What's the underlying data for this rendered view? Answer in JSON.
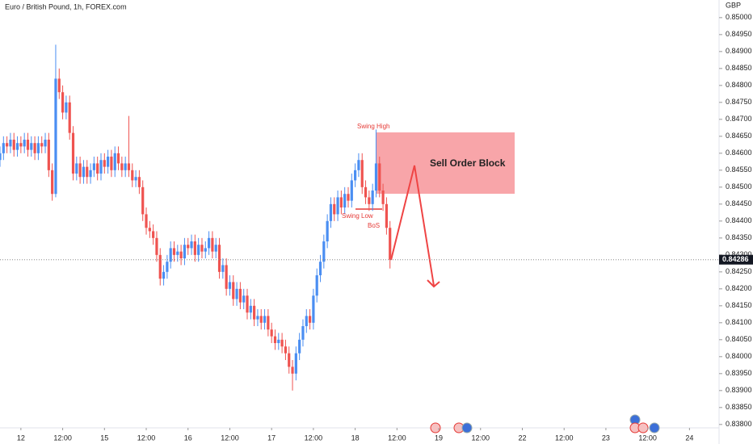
{
  "chart_data": {
    "type": "candlestick",
    "title": "Euro / British Pound, 1h, FOREX.com",
    "y_axis_label": "GBP",
    "annotations": {
      "swing_high": "Swing High",
      "swing_low": "Swing Low",
      "bos": "BoS",
      "order_block": "Sell Order Block"
    },
    "up_color": "#4a8ef2",
    "down_color": "#ef5350",
    "x": [
      -6,
      -5,
      -4,
      -3,
      -2,
      -1,
      0,
      1,
      2,
      3,
      4,
      5,
      6,
      7,
      8,
      9,
      10,
      11,
      12,
      13,
      14,
      15,
      16,
      17,
      18,
      19,
      20,
      21,
      22,
      23,
      24,
      25,
      26,
      27,
      28,
      29,
      30,
      31,
      32,
      33,
      34,
      35,
      36,
      37,
      38,
      39,
      40,
      41,
      42,
      43,
      44,
      45,
      46,
      47,
      48,
      49,
      50,
      51,
      52,
      53,
      54,
      55,
      56,
      57,
      58,
      59,
      60,
      61,
      62,
      63,
      64,
      65,
      66,
      67,
      68,
      69,
      70,
      71,
      72,
      73,
      74,
      75,
      76,
      77,
      78,
      79,
      80,
      81,
      82,
      83,
      84,
      85,
      86,
      87,
      88,
      89,
      90,
      91,
      92,
      93,
      94,
      95,
      96,
      97,
      98,
      99,
      100,
      101,
      102,
      103,
      104,
      105,
      106
    ],
    "open": [
      0.8458,
      0.846,
      0.8463,
      0.8462,
      0.8464,
      0.8461,
      0.8463,
      0.8462,
      0.8464,
      0.8461,
      0.8463,
      0.846,
      0.8463,
      0.8462,
      0.8464,
      0.8455,
      0.8448,
      0.8482,
      0.8478,
      0.8472,
      0.8475,
      0.8466,
      0.8454,
      0.8457,
      0.8453,
      0.8456,
      0.8453,
      0.8455,
      0.8457,
      0.8454,
      0.8458,
      0.8456,
      0.8459,
      0.8455,
      0.846,
      0.8457,
      0.8455,
      0.8457,
      0.8455,
      0.8452,
      0.8453,
      0.845,
      0.8442,
      0.8438,
      0.8437,
      0.8435,
      0.843,
      0.8423,
      0.8425,
      0.8428,
      0.8432,
      0.843,
      0.8431,
      0.8429,
      0.8433,
      0.8432,
      0.8434,
      0.843,
      0.8433,
      0.8431,
      0.8432,
      0.8435,
      0.8431,
      0.8433,
      0.8425,
      0.8427,
      0.842,
      0.8422,
      0.8417,
      0.842,
      0.8416,
      0.8418,
      0.8413,
      0.8415,
      0.8411,
      0.8412,
      0.841,
      0.8412,
      0.8408,
      0.8406,
      0.8404,
      0.8405,
      0.8403,
      0.8401,
      0.8397,
      0.8395,
      0.8401,
      0.8405,
      0.8409,
      0.8412,
      0.841,
      0.8418,
      0.8424,
      0.8428,
      0.8434,
      0.844,
      0.8445,
      0.8442,
      0.8447,
      0.8444,
      0.8448,
      0.8446,
      0.8452,
      0.8455,
      0.8458,
      0.845,
      0.8447,
      0.8445,
      0.8449,
      0.8457,
      0.8449,
      0.8445,
      0.8438
    ],
    "high": [
      0.8462,
      0.8465,
      0.8465,
      0.8466,
      0.8466,
      0.8465,
      0.8465,
      0.8466,
      0.8466,
      0.8465,
      0.8465,
      0.8465,
      0.8465,
      0.8466,
      0.8466,
      0.8457,
      0.8492,
      0.8485,
      0.848,
      0.8477,
      0.8477,
      0.8468,
      0.8459,
      0.8459,
      0.8458,
      0.8458,
      0.8457,
      0.8459,
      0.8459,
      0.846,
      0.846,
      0.8461,
      0.8461,
      0.8462,
      0.8462,
      0.8459,
      0.8459,
      0.8471,
      0.8457,
      0.8455,
      0.8455,
      0.8452,
      0.8444,
      0.844,
      0.8439,
      0.8437,
      0.8432,
      0.8427,
      0.843,
      0.8434,
      0.8434,
      0.8433,
      0.8433,
      0.8435,
      0.8435,
      0.8436,
      0.8436,
      0.8435,
      0.8435,
      0.8434,
      0.8437,
      0.8437,
      0.8435,
      0.8435,
      0.8429,
      0.8429,
      0.8424,
      0.8424,
      0.8422,
      0.8422,
      0.842,
      0.842,
      0.8417,
      0.8417,
      0.8414,
      0.8414,
      0.8414,
      0.8414,
      0.841,
      0.8408,
      0.8407,
      0.8407,
      0.8405,
      0.8403,
      0.8399,
      0.8403,
      0.8407,
      0.8411,
      0.8414,
      0.8414,
      0.842,
      0.8426,
      0.843,
      0.8436,
      0.8442,
      0.8447,
      0.8447,
      0.8449,
      0.8449,
      0.845,
      0.845,
      0.8454,
      0.8457,
      0.846,
      0.846,
      0.8452,
      0.8449,
      0.8451,
      0.8467,
      0.8459,
      0.8451,
      0.8447,
      0.844
    ],
    "low": [
      0.8456,
      0.8458,
      0.846,
      0.846,
      0.8459,
      0.8459,
      0.846,
      0.846,
      0.8459,
      0.8459,
      0.8458,
      0.8458,
      0.846,
      0.846,
      0.8453,
      0.8446,
      0.8447,
      0.8476,
      0.847,
      0.847,
      0.8464,
      0.8452,
      0.8452,
      0.8451,
      0.8451,
      0.8451,
      0.8451,
      0.8453,
      0.8452,
      0.8452,
      0.8454,
      0.8454,
      0.8453,
      0.8453,
      0.8455,
      0.8453,
      0.8453,
      0.8453,
      0.845,
      0.845,
      0.8448,
      0.844,
      0.8436,
      0.8435,
      0.8433,
      0.8428,
      0.8421,
      0.8421,
      0.8423,
      0.8426,
      0.8428,
      0.8428,
      0.8427,
      0.8427,
      0.843,
      0.843,
      0.8428,
      0.8428,
      0.8429,
      0.8429,
      0.843,
      0.8429,
      0.8429,
      0.8423,
      0.8423,
      0.8418,
      0.8418,
      0.8415,
      0.8415,
      0.8414,
      0.8414,
      0.8411,
      0.8411,
      0.8409,
      0.8409,
      0.8408,
      0.8408,
      0.8406,
      0.8404,
      0.8402,
      0.8402,
      0.8401,
      0.8399,
      0.8395,
      0.839,
      0.8393,
      0.8399,
      0.8403,
      0.8407,
      0.8408,
      0.8408,
      0.8416,
      0.8422,
      0.8426,
      0.8432,
      0.8438,
      0.844,
      0.844,
      0.8442,
      0.8442,
      0.8444,
      0.8444,
      0.845,
      0.8453,
      0.8448,
      0.8445,
      0.8443,
      0.8443,
      0.8447,
      0.8447,
      0.8443,
      0.8436,
      0.8426
    ],
    "close": [
      0.846,
      0.8463,
      0.8462,
      0.8464,
      0.8461,
      0.8463,
      0.8462,
      0.8464,
      0.8461,
      0.8463,
      0.846,
      0.8463,
      0.8462,
      0.8464,
      0.8455,
      0.8448,
      0.8482,
      0.8478,
      0.8472,
      0.8475,
      0.8466,
      0.8454,
      0.8457,
      0.8453,
      0.8456,
      0.8453,
      0.8455,
      0.8457,
      0.8454,
      0.8458,
      0.8456,
      0.8459,
      0.8455,
      0.846,
      0.8457,
      0.8455,
      0.8457,
      0.8455,
      0.8452,
      0.8453,
      0.845,
      0.8442,
      0.8438,
      0.8437,
      0.8435,
      0.843,
      0.8423,
      0.8425,
      0.8428,
      0.8432,
      0.843,
      0.8431,
      0.8429,
      0.8433,
      0.8432,
      0.8434,
      0.843,
      0.8433,
      0.8431,
      0.8432,
      0.8435,
      0.8431,
      0.8433,
      0.8425,
      0.8427,
      0.842,
      0.8422,
      0.8417,
      0.842,
      0.8416,
      0.8418,
      0.8413,
      0.8415,
      0.8411,
      0.8412,
      0.841,
      0.8412,
      0.8408,
      0.8406,
      0.8404,
      0.8405,
      0.8403,
      0.8401,
      0.8397,
      0.8395,
      0.8401,
      0.8405,
      0.8409,
      0.8412,
      0.841,
      0.8418,
      0.8424,
      0.8428,
      0.8434,
      0.844,
      0.8445,
      0.8442,
      0.8447,
      0.8444,
      0.8448,
      0.8446,
      0.8452,
      0.8455,
      0.8458,
      0.845,
      0.8447,
      0.8445,
      0.8449,
      0.8457,
      0.8449,
      0.8445,
      0.8438,
      0.84286
    ],
    "xlim": [
      -6,
      200.5
    ],
    "xticks": [
      {
        "value": 0,
        "label": "12"
      },
      {
        "value": 12,
        "label": "12:00"
      },
      {
        "value": 24,
        "label": "15"
      },
      {
        "value": 36,
        "label": "12:00"
      },
      {
        "value": 48,
        "label": "16"
      },
      {
        "value": 60,
        "label": "12:00"
      },
      {
        "value": 72,
        "label": "17"
      },
      {
        "value": 84,
        "label": "12:00"
      },
      {
        "value": 96,
        "label": "18"
      },
      {
        "value": 108,
        "label": "12:00"
      },
      {
        "value": 120,
        "label": "19"
      },
      {
        "value": 132,
        "label": "12:00"
      },
      {
        "value": 144,
        "label": "22"
      },
      {
        "value": 156,
        "label": "12:00"
      },
      {
        "value": 168,
        "label": "23"
      },
      {
        "value": 180,
        "label": "12:00"
      },
      {
        "value": 192,
        "label": "24"
      }
    ],
    "ylim": [
      0.8379,
      0.85052
    ],
    "yticks": [
      {
        "value": 0.838,
        "label": "0.83800"
      },
      {
        "value": 0.8385,
        "label": "0.83850"
      },
      {
        "value": 0.839,
        "label": "0.83900"
      },
      {
        "value": 0.8395,
        "label": "0.83950"
      },
      {
        "value": 0.84,
        "label": "0.84000"
      },
      {
        "value": 0.8405,
        "label": "0.84050"
      },
      {
        "value": 0.841,
        "label": "0.84100"
      },
      {
        "value": 0.8415,
        "label": "0.84150"
      },
      {
        "value": 0.842,
        "label": "0.84200"
      },
      {
        "value": 0.8425,
        "label": "0.84250"
      },
      {
        "value": 0.843,
        "label": "0.84300"
      },
      {
        "value": 0.8435,
        "label": "0.84350"
      },
      {
        "value": 0.844,
        "label": "0.84400"
      },
      {
        "value": 0.8445,
        "label": "0.84450"
      },
      {
        "value": 0.845,
        "label": "0.84500"
      },
      {
        "value": 0.8455,
        "label": "0.84550"
      },
      {
        "value": 0.846,
        "label": "0.84600"
      },
      {
        "value": 0.8465,
        "label": "0.84650"
      },
      {
        "value": 0.847,
        "label": "0.84700"
      },
      {
        "value": 0.8475,
        "label": "0.84750"
      },
      {
        "value": 0.848,
        "label": "0.84800"
      },
      {
        "value": 0.8485,
        "label": "0.84850"
      },
      {
        "value": 0.849,
        "label": "0.84900"
      },
      {
        "value": 0.8495,
        "label": "0.84950"
      },
      {
        "value": 0.85,
        "label": "0.85000"
      }
    ]
  }
}
